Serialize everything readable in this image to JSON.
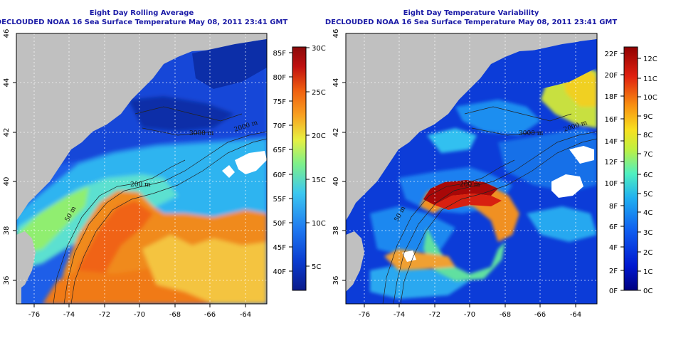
{
  "panels": [
    {
      "id": "left",
      "title_line1": "Eight Day Rolling Average",
      "title_line2": "DECLOUDED NOAA 16 Sea Surface Temperature May 08, 2011 23:41 GMT",
      "x_ticks": [
        "-76",
        "-74",
        "-72",
        "-70",
        "-68",
        "-66",
        "-64"
      ],
      "y_ticks": [
        "36",
        "38",
        "40",
        "42",
        "44",
        "46"
      ],
      "contour_labels": [
        "50 m",
        "200 m",
        "2000 m",
        "3000 m"
      ],
      "colorbar": {
        "fahrenheit": [
          "40F",
          "45F",
          "50F",
          "55F",
          "60F",
          "65F",
          "70F",
          "75F",
          "80F",
          "85F"
        ],
        "celsius": [
          "5C",
          "10C",
          "15C",
          "20C",
          "25C",
          "30C"
        ]
      }
    },
    {
      "id": "right",
      "title_line1": "Eight Day Temperature Variability",
      "title_line2": "DECLOUDED NOAA 16 Sea Surface Temperature May 08, 2011 23:41 GMT",
      "x_ticks": [
        "-76",
        "-74",
        "-72",
        "-70",
        "-68",
        "-66",
        "-64"
      ],
      "y_ticks": [
        "36",
        "38",
        "40",
        "42",
        "44",
        "46"
      ],
      "contour_labels": [
        "50 m",
        "200 m",
        "2000 m",
        "3000 m"
      ],
      "colorbar": {
        "fahrenheit": [
          "0F",
          "2F",
          "4F",
          "6F",
          "8F",
          "10F",
          "12F",
          "14F",
          "16F",
          "18F",
          "20F",
          "22F"
        ],
        "celsius": [
          "0C",
          "1C",
          "2C",
          "3C",
          "4C",
          "5C",
          "6C",
          "7C",
          "8C",
          "9C",
          "10C",
          "11C",
          "12C"
        ]
      }
    }
  ],
  "colors": {
    "title": "#1a1aa6",
    "land": "#c0c0c0",
    "cloud": "#ffffff",
    "sst_scale": [
      "#0a1a8a",
      "#0a3cd0",
      "#1e78f0",
      "#3cc8f0",
      "#7ef08a",
      "#e8f040",
      "#f8a020",
      "#f06010",
      "#c01010",
      "#8a0a0a"
    ],
    "var_scale": [
      "#000080",
      "#0018d0",
      "#1060f0",
      "#20b0f0",
      "#50f0c0",
      "#c0f040",
      "#f8e020",
      "#f89010",
      "#e02010",
      "#900000"
    ]
  }
}
